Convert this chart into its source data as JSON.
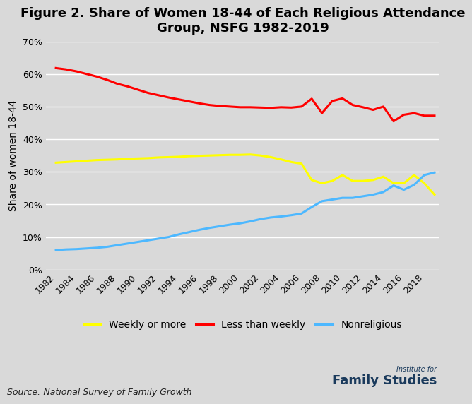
{
  "title": "Figure 2. Share of Women 18-44 of Each Religious Attendance\nGroup, NSFG 1982-2019",
  "ylabel": "Share of women 18-44",
  "source": "Source: National Survey of Family Growth",
  "background_color": "#d9d9d9",
  "years": [
    1982,
    1983,
    1984,
    1985,
    1986,
    1987,
    1988,
    1989,
    1990,
    1991,
    1992,
    1993,
    1994,
    1995,
    1996,
    1997,
    1998,
    1999,
    2000,
    2001,
    2002,
    2003,
    2004,
    2005,
    2006,
    2007,
    2008,
    2009,
    2010,
    2011,
    2012,
    2013,
    2014,
    2015,
    2016,
    2017,
    2018,
    2019
  ],
  "weekly_or_more": [
    0.328,
    0.33,
    0.332,
    0.334,
    0.336,
    0.337,
    0.338,
    0.34,
    0.341,
    0.342,
    0.344,
    0.345,
    0.346,
    0.348,
    0.349,
    0.35,
    0.351,
    0.352,
    0.352,
    0.353,
    0.35,
    0.345,
    0.338,
    0.33,
    0.325,
    0.275,
    0.265,
    0.272,
    0.29,
    0.272,
    0.272,
    0.275,
    0.285,
    0.265,
    0.265,
    0.29,
    0.265,
    0.23
  ],
  "less_than_weekly": [
    0.618,
    0.614,
    0.608,
    0.6,
    0.592,
    0.582,
    0.57,
    0.562,
    0.552,
    0.542,
    0.535,
    0.528,
    0.522,
    0.516,
    0.51,
    0.505,
    0.502,
    0.5,
    0.498,
    0.498,
    0.497,
    0.496,
    0.498,
    0.497,
    0.5,
    0.524,
    0.48,
    0.517,
    0.525,
    0.505,
    0.498,
    0.49,
    0.5,
    0.455,
    0.475,
    0.48,
    0.472,
    0.472
  ],
  "nonreligious": [
    0.06,
    0.062,
    0.063,
    0.065,
    0.067,
    0.07,
    0.075,
    0.08,
    0.085,
    0.09,
    0.095,
    0.1,
    0.108,
    0.115,
    0.122,
    0.128,
    0.133,
    0.138,
    0.142,
    0.148,
    0.155,
    0.16,
    0.163,
    0.167,
    0.172,
    0.192,
    0.21,
    0.215,
    0.22,
    0.22,
    0.225,
    0.23,
    0.238,
    0.258,
    0.245,
    0.26,
    0.29,
    0.298
  ],
  "weekly_color": "#ffff00",
  "less_than_weekly_color": "#ff0000",
  "nonreligious_color": "#4db8ff",
  "line_width": 2.2,
  "legend_labels": [
    "Weekly or more",
    "Less than weekly",
    "Nonreligious"
  ],
  "ylim": [
    0,
    0.7
  ],
  "yticks": [
    0.0,
    0.1,
    0.2,
    0.3,
    0.4,
    0.5,
    0.6,
    0.7
  ],
  "xtick_years": [
    1982,
    1984,
    1986,
    1988,
    1990,
    1992,
    1994,
    1996,
    1998,
    2000,
    2002,
    2004,
    2006,
    2008,
    2010,
    2012,
    2014,
    2016,
    2018
  ],
  "title_fontsize": 13,
  "axis_label_fontsize": 10,
  "tick_fontsize": 9,
  "legend_fontsize": 10,
  "source_fontsize": 9,
  "family_studies_fontsize": 13,
  "institute_for_fontsize": 7
}
